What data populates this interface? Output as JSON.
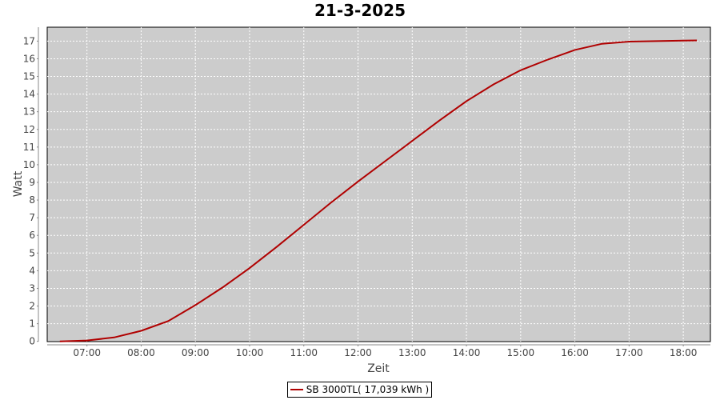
{
  "chart_data": {
    "type": "line",
    "title": "21-3-2025",
    "xlabel": "Zeit",
    "ylabel": "Watt",
    "xlim": [
      "06:16",
      "18:30"
    ],
    "ylim": [
      0,
      17.8
    ],
    "xticks": [
      "07:00",
      "08:00",
      "09:00",
      "10:00",
      "11:00",
      "12:00",
      "13:00",
      "14:00",
      "15:00",
      "16:00",
      "17:00",
      "18:00"
    ],
    "yticks": [
      0,
      1,
      2,
      3,
      4,
      5,
      6,
      7,
      8,
      9,
      10,
      11,
      12,
      13,
      14,
      15,
      16,
      17
    ],
    "grid": true,
    "legend_position": "bottom",
    "plot_background": "#cccccc",
    "series": [
      {
        "name": "SB 3000TL( 17,039 kWh )",
        "color": "#b00000",
        "x": [
          "06:30",
          "07:00",
          "07:30",
          "08:00",
          "08:30",
          "09:00",
          "09:30",
          "10:00",
          "10:30",
          "11:00",
          "11:30",
          "12:00",
          "12:30",
          "13:00",
          "13:30",
          "14:00",
          "14:30",
          "15:00",
          "15:30",
          "16:00",
          "16:30",
          "17:00",
          "17:30",
          "18:00",
          "18:15"
        ],
        "y": [
          0,
          0.05,
          0.22,
          0.6,
          1.15,
          2.05,
          3.05,
          4.15,
          5.35,
          6.6,
          7.85,
          9.05,
          10.2,
          11.35,
          12.5,
          13.6,
          14.55,
          15.35,
          15.95,
          16.5,
          16.85,
          16.97,
          17.0,
          17.03,
          17.04
        ]
      }
    ]
  }
}
